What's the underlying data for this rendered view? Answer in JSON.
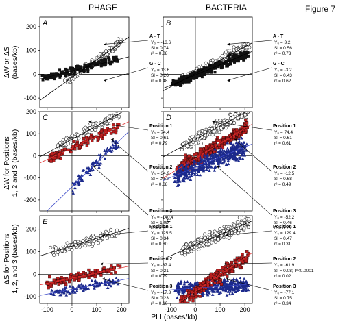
{
  "figure": {
    "label": "Figure 7",
    "col_left": "PHAGE",
    "col_right": "BACTERIA",
    "xlabel": "PLI  (bases/kb)",
    "ylabels": [
      "ΔW or ΔS",
      "(bases/kb)",
      "ΔW  for Positions",
      "1, 2 and 3 (bases/kb)",
      "ΔS for Positions",
      "1, 2, and 3 (bases/kb)"
    ]
  },
  "colors": {
    "open": "#ffffff",
    "black": "#111111",
    "red": "#b81e1e",
    "blue": "#1c2a8c",
    "red_line": "#e03030",
    "blue_line": "#3a48c8"
  },
  "chart_data": [
    {
      "id": "A",
      "type": "scatter",
      "xlim": [
        -130,
        230
      ],
      "ylim": [
        -140,
        240
      ],
      "xticks": [
        -100,
        0,
        100,
        200
      ],
      "yticks": [
        -100,
        0,
        100,
        200
      ],
      "tick_labels_x": [
        "-100",
        "0",
        "100",
        "200"
      ],
      "tick_labels_y": [
        "-100",
        "0",
        "100",
        "200"
      ],
      "series": [
        {
          "name": "A - T",
          "style": "open",
          "n": 120,
          "y0": -13.6,
          "slope": 0.74,
          "spread": 18,
          "xmin": -20,
          "xmax": 195
        },
        {
          "name": "G - C",
          "style": "black",
          "n": 160,
          "y0": 13.6,
          "slope": 0.26,
          "spread": 15,
          "xmin": -120,
          "xmax": 190
        }
      ],
      "annotations": [
        {
          "title": "A - T",
          "lines": [
            "Y₀ = -13.6",
            "Sl =  0.74",
            "r² =  0.88"
          ]
        },
        {
          "title": "G - C",
          "lines": [
            "Y₀ = 13.6",
            "Sl =  0.26",
            "r² =  0.48"
          ]
        }
      ]
    },
    {
      "id": "B",
      "type": "scatter",
      "xlim": [
        -130,
        230
      ],
      "ylim": [
        -140,
        240
      ],
      "xticks": [
        -100,
        0,
        100,
        200
      ],
      "yticks": [
        -100,
        0,
        100,
        200
      ],
      "series": [
        {
          "name": "A - T",
          "style": "open",
          "n": 200,
          "y0": 3.2,
          "slope": 0.56,
          "spread": 18,
          "xmin": -60,
          "xmax": 215
        },
        {
          "name": "G - C",
          "style": "black",
          "n": 330,
          "y0": -3.2,
          "slope": 0.43,
          "spread": 16,
          "xmin": -90,
          "xmax": 210
        }
      ],
      "annotations": [
        {
          "title": "A - T",
          "lines": [
            "Y₀ =   3.2",
            "Sl =  0.56",
            "r² =  0.73"
          ]
        },
        {
          "title": "G - C",
          "lines": [
            "Y₀ =  -3.2",
            "Sl =  0.43",
            "r² =  0.62"
          ]
        }
      ]
    },
    {
      "id": "C",
      "type": "scatter",
      "xlim": [
        -130,
        230
      ],
      "ylim": [
        -250,
        200
      ],
      "xticks": [
        -100,
        0,
        100,
        200
      ],
      "yticks": [
        -200,
        -100,
        0,
        100,
        200
      ],
      "tick_labels_y": [
        "-200",
        "-100",
        "0",
        "100",
        "200"
      ],
      "series": [
        {
          "name": "Position 1",
          "style": "open",
          "n": 110,
          "y0": 74.4,
          "slope": 0.61,
          "spread": 20,
          "xmin": -70,
          "xmax": 190
        },
        {
          "name": "Position 2",
          "style": "red",
          "n": 110,
          "y0": 34.9,
          "slope": 0.52,
          "spread": 22,
          "xmin": -90,
          "xmax": 190
        },
        {
          "name": "Position 3",
          "style": "blue",
          "n": 90,
          "y0": -140.4,
          "slope": 1.09,
          "spread": 30,
          "xmin": 0,
          "xmax": 190
        }
      ],
      "annotations": [
        {
          "title": "Position 1",
          "lines": [
            "Y₀ =  74.4",
            "Sl =  0.61",
            "r² =  0.79"
          ]
        },
        {
          "title": "Position 2",
          "lines": [
            "Y₀ =  34.9",
            "Sl =  0.52",
            "r² =  0.68"
          ]
        },
        {
          "title": "Position 3",
          "lines": [
            "Y₀ = -140.4",
            "Sl =  1.09",
            "r² =  0.65"
          ]
        }
      ]
    },
    {
      "id": "D",
      "type": "scatter",
      "xlim": [
        -130,
        230
      ],
      "ylim": [
        -250,
        200
      ],
      "xticks": [
        -100,
        0,
        100,
        200
      ],
      "yticks": [
        -200,
        -100,
        0,
        100,
        200
      ],
      "series": [
        {
          "name": "Position 1",
          "style": "open",
          "n": 250,
          "y0": 74.4,
          "slope": 0.61,
          "spread": 24,
          "xmin": -50,
          "xmax": 215
        },
        {
          "name": "Position 2",
          "style": "red",
          "n": 300,
          "y0": -12.5,
          "slope": 0.68,
          "spread": 28,
          "xmin": -70,
          "xmax": 210
        },
        {
          "name": "Position 3",
          "style": "blue",
          "n": 400,
          "y0": -52.2,
          "slope": 0.46,
          "spread": 40,
          "xmin": -80,
          "xmax": 205
        }
      ],
      "annotations": [
        {
          "title": "Position 1",
          "lines": [
            "Y₀ =  74.4",
            "Sl =  0.61",
            "r² =  0.61"
          ]
        },
        {
          "title": "Position 2",
          "lines": [
            "Y₀ = -12.5",
            "Sl =  0.68",
            "r² =  0.49"
          ]
        },
        {
          "title": "Position 3",
          "lines": [
            "Y₀ =  -52.2",
            "Sl =  0.46",
            "r² =  0.18"
          ]
        }
      ]
    },
    {
      "id": "E",
      "type": "scatter",
      "xlim": [
        -130,
        230
      ],
      "ylim": [
        -130,
        260
      ],
      "xticks": [
        -100,
        0,
        100,
        200
      ],
      "yticks": [
        -100,
        0,
        100,
        200
      ],
      "series": [
        {
          "name": "Position 1",
          "style": "open",
          "n": 110,
          "y0": 125.5,
          "slope": 0.34,
          "spread": 22,
          "xmin": -80,
          "xmax": 190
        },
        {
          "name": "Position 2",
          "style": "blue",
          "n": 100,
          "y0": -67.4,
          "slope": 0.21,
          "spread": 18,
          "xmin": -80,
          "xmax": 190
        },
        {
          "name": "Position 3",
          "style": "red",
          "n": 110,
          "y0": -17.3,
          "slope": 0.23,
          "spread": 18,
          "xmin": -100,
          "xmax": 190
        }
      ],
      "annotations": [
        {
          "title": "Position 1",
          "lines": [
            "Y₀ = 125.5",
            "Sl =  0.34",
            "r² =  0.30"
          ]
        },
        {
          "title": "Position 2",
          "lines": [
            "Y₀ =  -67.4",
            "Sl =  0.21",
            "r² =  0.29"
          ]
        },
        {
          "title": "Position 3",
          "lines": [
            "Y₀ =  -17.3",
            "Sl =  0.23",
            "r² =  0.10"
          ]
        }
      ]
    },
    {
      "id": "F",
      "type": "scatter",
      "xlim": [
        -130,
        230
      ],
      "ylim": [
        -130,
        260
      ],
      "xticks": [
        -100,
        0,
        100,
        200
      ],
      "yticks": [
        -100,
        0,
        100,
        200
      ],
      "series": [
        {
          "name": "Position 1",
          "style": "open",
          "n": 260,
          "y0": 129.4,
          "slope": 0.47,
          "spread": 26,
          "xmin": -50,
          "xmax": 215
        },
        {
          "name": "Position 2",
          "style": "blue",
          "n": 420,
          "y0": -61.9,
          "slope": 0.08,
          "spread": 30,
          "xmin": -80,
          "xmax": 210
        },
        {
          "name": "Position 3",
          "style": "red",
          "n": 220,
          "y0": -77.1,
          "slope": 0.75,
          "spread": 28,
          "xmin": -60,
          "xmax": 210
        }
      ],
      "annotations": [
        {
          "title": "Position 1",
          "lines": [
            "Y₀ = 129.4",
            "Sl =  0.47",
            "r² =  0.31"
          ]
        },
        {
          "title": "Position 2",
          "lines": [
            "Y₀ =  -61.9",
            "Sl =  0.08; P<0.0001",
            "r² =  0.02"
          ]
        },
        {
          "title": "Position 3",
          "lines": [
            "Y₀ =  -77.1",
            "Sl =  0.75",
            "r² =  0.34"
          ]
        }
      ]
    }
  ]
}
